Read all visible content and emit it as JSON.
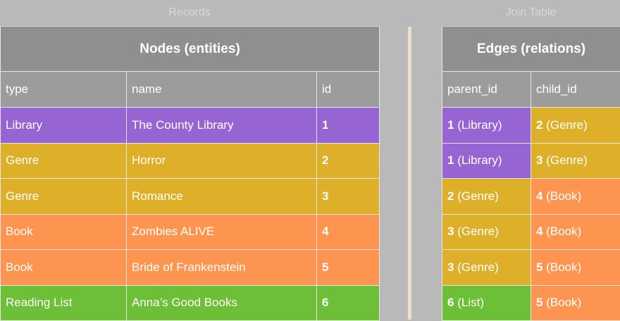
{
  "labels": {
    "records": "Records",
    "join_table": "Join Table"
  },
  "colors": {
    "Library": "#9765d3",
    "Genre": "#deb02a",
    "Book": "#fd9550",
    "Reading List": "#6cbf36",
    "List": "#6cbf36"
  },
  "nodes": {
    "title": "Nodes (entities)",
    "headers": [
      "type",
      "name",
      "id"
    ],
    "rows": [
      {
        "type": "Library",
        "name": "The County Library",
        "id": "1"
      },
      {
        "type": "Genre",
        "name": "Horror",
        "id": "2"
      },
      {
        "type": "Genre",
        "name": "Romance",
        "id": "3"
      },
      {
        "type": "Book",
        "name": "Zombies ALIVE",
        "id": "4"
      },
      {
        "type": "Book",
        "name": "Bride of Frankenstein",
        "id": "5"
      },
      {
        "type": "Reading List",
        "name": "Anna’s Good Books",
        "id": "6"
      }
    ]
  },
  "edges": {
    "title": "Edges (relations)",
    "headers": [
      "parent_id",
      "child_id"
    ],
    "rows": [
      {
        "parent_id": "1",
        "parent_type": "(Library)",
        "child_id": "2",
        "child_type": "(Genre)"
      },
      {
        "parent_id": "1",
        "parent_type": "(Library)",
        "child_id": "3",
        "child_type": "(Genre)"
      },
      {
        "parent_id": "2",
        "parent_type": "(Genre)",
        "child_id": "4",
        "child_type": "(Book)"
      },
      {
        "parent_id": "3",
        "parent_type": "(Genre)",
        "child_id": "4",
        "child_type": "(Book)"
      },
      {
        "parent_id": "3",
        "parent_type": "(Genre)",
        "child_id": "5",
        "child_type": "(Book)"
      },
      {
        "parent_id": "6",
        "parent_type": "(List)",
        "child_id": "5",
        "child_type": "(Book)"
      }
    ]
  }
}
